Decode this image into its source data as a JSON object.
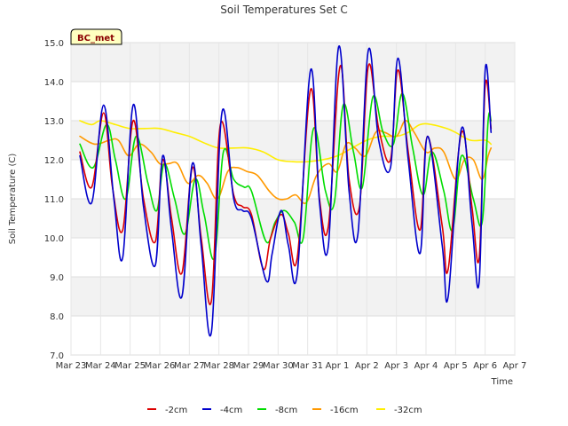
{
  "chart_data": {
    "type": "line",
    "title": "Soil Temperatures Set C",
    "xlabel": "Time",
    "ylabel": "Soil Temperature (C)",
    "badge": "BC_met",
    "ylim": [
      7.0,
      15.0
    ],
    "yticks": [
      "7.0",
      "8.0",
      "9.0",
      "10.0",
      "11.0",
      "12.0",
      "13.0",
      "14.0",
      "15.0"
    ],
    "xlim": [
      0,
      15
    ],
    "xticks": [
      "Mar 23",
      "Mar 24",
      "Mar 25",
      "Mar 26",
      "Mar 27",
      "Mar 28",
      "Mar 29",
      "Mar 30",
      "Mar 31",
      "Apr 1",
      "Apr 2",
      "Apr 3",
      "Apr 4",
      "Apr 5",
      "Apr 6",
      "Apr 7"
    ],
    "grid": true,
    "legend_position": "bottom",
    "series": [
      {
        "name": "-2cm",
        "color": "#dd0000",
        "x": [
          0.3,
          0.7,
          1.1,
          1.4,
          1.75,
          2.1,
          2.45,
          2.85,
          3.1,
          3.4,
          3.75,
          4.1,
          4.4,
          4.75,
          5.05,
          5.5,
          5.8,
          6.1,
          6.5,
          6.75,
          7.1,
          7.35,
          7.65,
          8.1,
          8.4,
          8.7,
          9.1,
          9.4,
          9.75,
          10.05,
          10.4,
          10.8,
          11.05,
          11.4,
          11.8,
          12.05,
          12.55,
          12.75,
          13.2,
          13.55,
          13.8,
          14.0,
          14.2
        ],
        "y": [
          12.2,
          11.3,
          13.2,
          11.3,
          10.2,
          13.0,
          11.0,
          9.9,
          12.0,
          10.5,
          9.1,
          11.8,
          10.0,
          8.4,
          12.9,
          11.1,
          10.8,
          10.6,
          9.2,
          10.0,
          10.6,
          10.1,
          9.5,
          13.8,
          11.0,
          10.3,
          14.4,
          11.5,
          10.8,
          14.4,
          12.8,
          12.0,
          14.3,
          12.2,
          10.2,
          12.6,
          10.3,
          9.2,
          12.7,
          10.8,
          9.5,
          13.9,
          12.8
        ]
      },
      {
        "name": "-4cm",
        "color": "#0000cc",
        "x": [
          0.3,
          0.7,
          1.1,
          1.45,
          1.75,
          2.1,
          2.45,
          2.85,
          3.1,
          3.4,
          3.75,
          4.1,
          4.4,
          4.75,
          5.1,
          5.5,
          5.8,
          6.1,
          6.6,
          6.8,
          7.1,
          7.35,
          7.65,
          8.1,
          8.4,
          8.7,
          9.05,
          9.4,
          9.7,
          10.05,
          10.4,
          10.8,
          11.05,
          11.4,
          11.8,
          12.05,
          12.55,
          12.75,
          13.2,
          13.55,
          13.8,
          14.0,
          14.2
        ],
        "y": [
          12.1,
          10.9,
          13.4,
          11.0,
          9.5,
          13.4,
          10.8,
          9.3,
          12.1,
          10.2,
          8.5,
          11.9,
          9.8,
          7.6,
          13.2,
          11.0,
          10.7,
          10.5,
          8.9,
          9.6,
          10.7,
          9.8,
          9.1,
          14.3,
          10.9,
          9.8,
          14.9,
          11.2,
          10.1,
          14.8,
          12.5,
          11.8,
          14.6,
          12.0,
          9.6,
          12.6,
          9.8,
          8.5,
          12.8,
          10.4,
          8.9,
          14.3,
          12.7
        ]
      },
      {
        "name": "-8cm",
        "color": "#00dd00",
        "x": [
          0.3,
          0.75,
          1.2,
          1.5,
          1.85,
          2.2,
          2.6,
          2.9,
          3.15,
          3.5,
          3.85,
          4.2,
          4.5,
          4.85,
          5.15,
          5.5,
          5.85,
          6.1,
          6.6,
          6.9,
          7.2,
          7.55,
          7.85,
          8.2,
          8.6,
          8.9,
          9.2,
          9.55,
          9.85,
          10.2,
          10.55,
          10.9,
          11.2,
          11.55,
          11.9,
          12.2,
          12.6,
          12.9,
          13.2,
          13.6,
          13.9,
          14.1,
          14.2
        ],
        "y": [
          12.4,
          11.8,
          12.9,
          12.0,
          11.0,
          12.6,
          11.4,
          10.7,
          11.9,
          11.0,
          10.1,
          11.5,
          10.6,
          9.5,
          12.2,
          11.5,
          11.3,
          11.2,
          9.9,
          10.4,
          10.7,
          10.4,
          10.0,
          12.8,
          11.2,
          10.9,
          13.4,
          12.2,
          11.3,
          13.6,
          12.7,
          12.4,
          13.7,
          12.3,
          11.1,
          12.2,
          11.2,
          10.2,
          12.1,
          11.0,
          10.4,
          13.0,
          13.0
        ]
      },
      {
        "name": "-16cm",
        "color": "#ff9900",
        "x": [
          0.3,
          0.8,
          1.3,
          1.6,
          1.95,
          2.3,
          2.7,
          3.0,
          3.3,
          3.6,
          3.95,
          4.3,
          4.6,
          4.95,
          5.3,
          5.6,
          5.95,
          6.3,
          6.7,
          7.0,
          7.3,
          7.6,
          7.95,
          8.3,
          8.7,
          9.0,
          9.3,
          9.6,
          9.95,
          10.3,
          10.6,
          11.0,
          11.3,
          11.6,
          12.0,
          12.3,
          12.6,
          13.0,
          13.3,
          13.6,
          13.9,
          14.1,
          14.2
        ],
        "y": [
          12.6,
          12.4,
          12.5,
          12.5,
          12.1,
          12.4,
          12.2,
          11.9,
          11.9,
          11.9,
          11.4,
          11.6,
          11.4,
          11.0,
          11.7,
          11.8,
          11.7,
          11.6,
          11.2,
          11.0,
          11.0,
          11.1,
          10.9,
          11.6,
          11.9,
          11.7,
          12.4,
          12.3,
          12.1,
          12.7,
          12.7,
          12.6,
          13.0,
          12.7,
          12.2,
          12.3,
          12.2,
          11.5,
          12.0,
          12.0,
          11.5,
          12.1,
          12.3
        ]
      },
      {
        "name": "-32cm",
        "color": "#ffee00",
        "x": [
          0.3,
          0.7,
          1.0,
          1.5,
          2.0,
          2.5,
          3.0,
          3.5,
          4.0,
          4.3,
          4.6,
          5.0,
          5.5,
          6.0,
          6.5,
          7.0,
          7.5,
          8.0,
          8.5,
          9.0,
          9.5,
          10.0,
          10.5,
          11.0,
          11.4,
          11.8,
          12.2,
          12.7,
          13.0,
          13.5,
          14.0,
          14.2
        ],
        "y": [
          13.0,
          12.9,
          13.0,
          12.9,
          12.8,
          12.8,
          12.8,
          12.7,
          12.6,
          12.5,
          12.4,
          12.3,
          12.3,
          12.3,
          12.2,
          12.0,
          11.95,
          11.95,
          12.0,
          12.1,
          12.3,
          12.5,
          12.6,
          12.6,
          12.7,
          12.9,
          12.9,
          12.8,
          12.7,
          12.5,
          12.5,
          12.4
        ]
      }
    ]
  }
}
